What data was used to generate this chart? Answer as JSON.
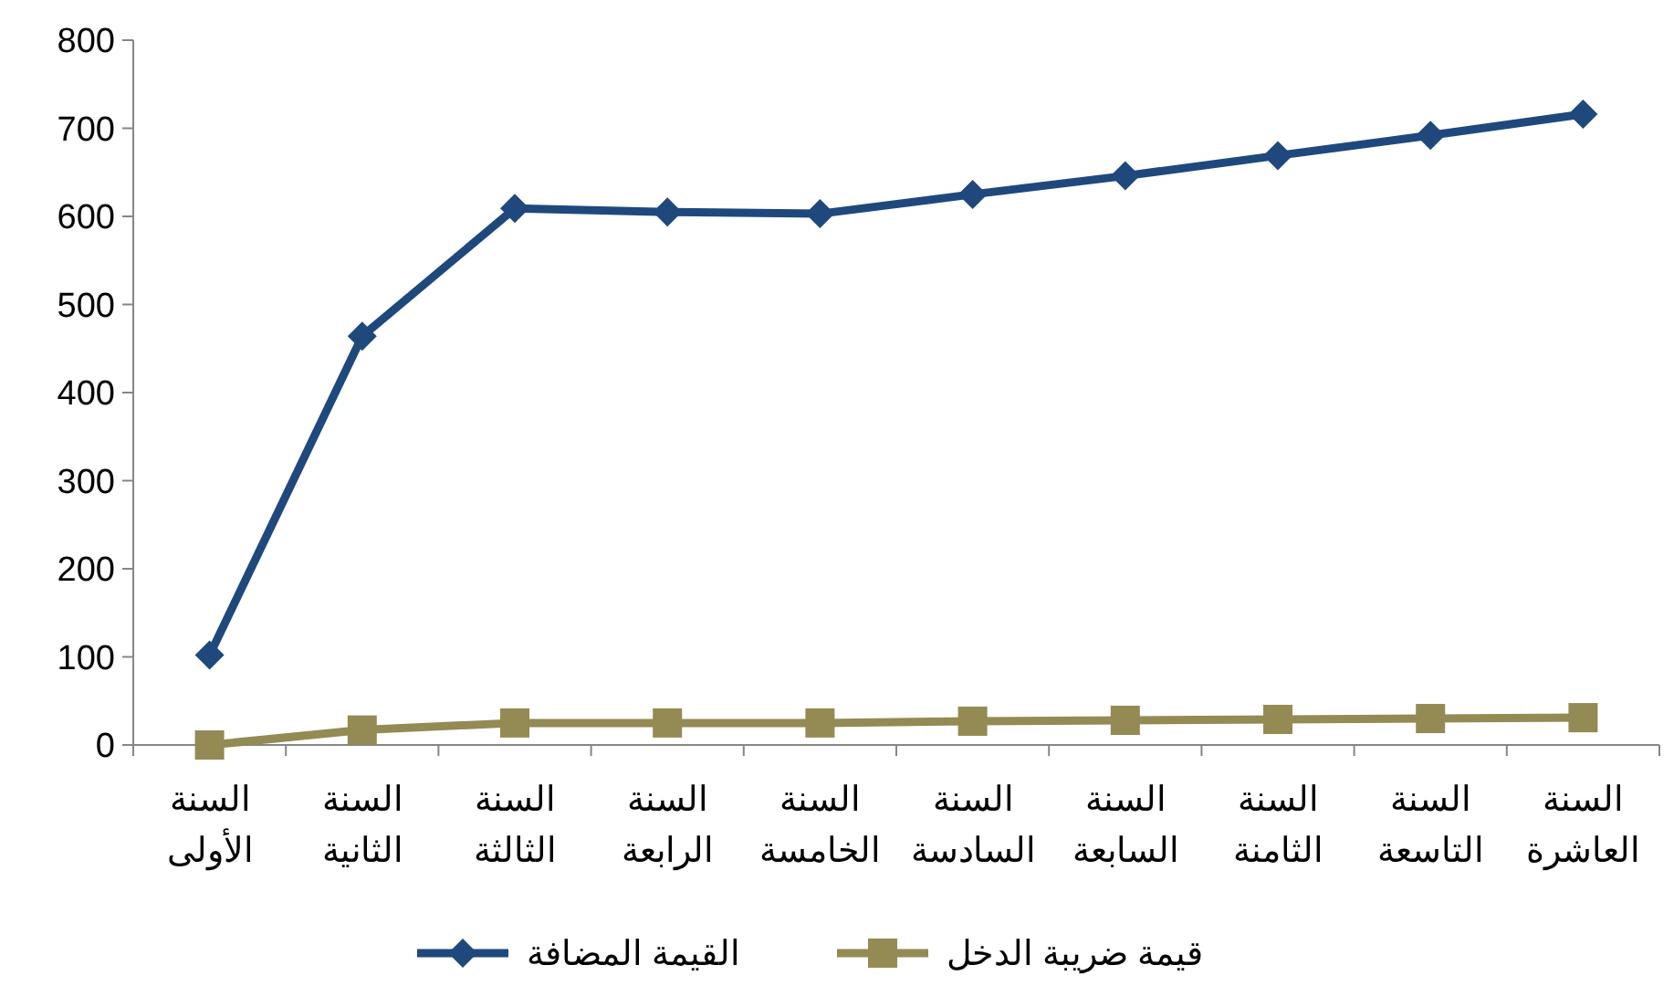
{
  "chart_data": {
    "type": "line",
    "categories": [
      "السنة الأولى",
      "السنة الثانية",
      "السنة الثالثة",
      "السنة الرابعة",
      "السنة الخامسة",
      "السنة السادسة",
      "السنة السابعة",
      "السنة الثامنة",
      "السنة التاسعة",
      "السنة العاشرة"
    ],
    "series": [
      {
        "name": "القيمة المضافة",
        "color": "#1f497d",
        "marker": "diamond",
        "values": [
          102,
          464,
          609,
          605,
          603,
          625,
          646,
          669,
          692,
          716
        ]
      },
      {
        "name": "قيمة ضريبة الدخل",
        "color": "#948a54",
        "marker": "square",
        "values": [
          0,
          17,
          25,
          25,
          25,
          27,
          28,
          29,
          30,
          31
        ]
      }
    ],
    "ylim": [
      0,
      800
    ],
    "yticks": [
      0,
      100,
      200,
      300,
      400,
      500,
      600,
      700,
      800
    ],
    "grid": false,
    "legend": "bottom"
  }
}
